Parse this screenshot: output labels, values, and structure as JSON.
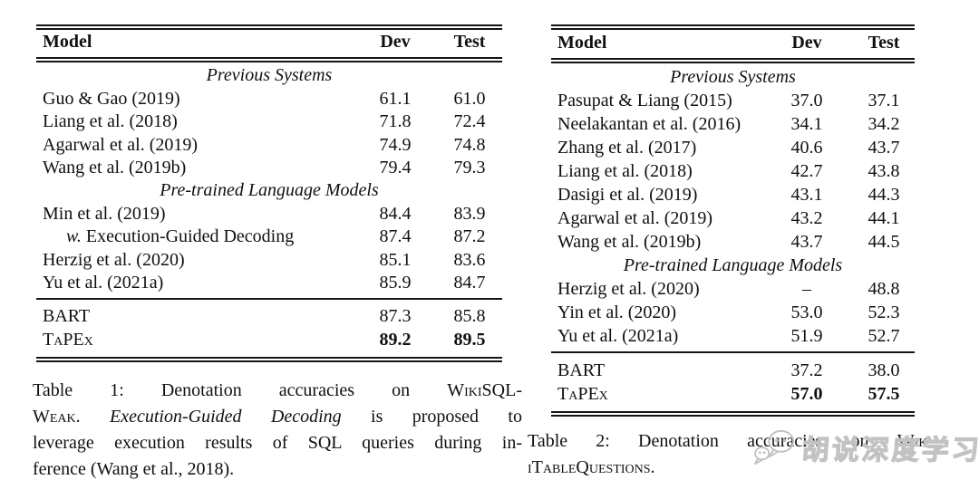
{
  "colors": {
    "background": "#ffffff",
    "text": "#101010",
    "rule": "#141414",
    "watermark_gray": "#c2c2c2"
  },
  "tables": [
    {
      "name": "wikisql-weak-results",
      "header": {
        "model": "Model",
        "dev": "Dev",
        "test": "Test"
      },
      "rows": [
        {
          "type": "section",
          "label": "Previous Systems"
        },
        {
          "type": "data",
          "model": [
            {
              "t": "Guo & Gao (2019)"
            }
          ],
          "dev": "61.1",
          "test": "61.0"
        },
        {
          "type": "data",
          "model": [
            {
              "t": "Liang et al. (2018)"
            }
          ],
          "dev": "71.8",
          "test": "72.4"
        },
        {
          "type": "data",
          "model": [
            {
              "t": "Agarwal et al. (2019)"
            }
          ],
          "dev": "74.9",
          "test": "74.8"
        },
        {
          "type": "data",
          "model": [
            {
              "t": "Wang et al. (2019b)"
            }
          ],
          "dev": "79.4",
          "test": "79.3"
        },
        {
          "type": "section",
          "label": "Pre-trained Language Models"
        },
        {
          "type": "data",
          "model": [
            {
              "t": "Min et al. (2019)"
            }
          ],
          "dev": "84.4",
          "test": "83.9"
        },
        {
          "type": "data",
          "indent": true,
          "model": [
            {
              "t": "w.",
              "i": true
            },
            {
              "t": " Execution-Guided Decoding"
            }
          ],
          "dev": "87.4",
          "test": "87.2"
        },
        {
          "type": "data",
          "model": [
            {
              "t": "Herzig et al. (2020)"
            }
          ],
          "dev": "85.1",
          "test": "83.6"
        },
        {
          "type": "data",
          "model": [
            {
              "t": "Yu et al. (2021a)"
            }
          ],
          "dev": "85.9",
          "test": "84.7"
        },
        {
          "type": "rule"
        },
        {
          "type": "data",
          "model": [
            {
              "t": "BART"
            }
          ],
          "dev": "87.3",
          "test": "85.8"
        },
        {
          "type": "data",
          "bold": true,
          "model": [
            {
              "t": "TaPEx",
              "sc": true
            }
          ],
          "dev": "89.2",
          "test": "89.5"
        }
      ],
      "caption": [
        [
          {
            "t": "Table 1: Denotation accuracies on "
          },
          {
            "t": "WikiSQL-",
            "sc": true
          }
        ],
        [
          {
            "t": "Weak.",
            "sc": true
          },
          {
            "t": " "
          },
          {
            "t": "Execution-Guided Decoding",
            "i": true
          },
          {
            "t": " is proposed to"
          }
        ],
        [
          {
            "t": "leverage execution results of SQL queries during in-"
          }
        ],
        [
          {
            "t": "ference (Wang et al., 2018)."
          }
        ]
      ]
    },
    {
      "name": "wikitablequestions-results",
      "header": {
        "model": "Model",
        "dev": "Dev",
        "test": "Test"
      },
      "rows": [
        {
          "type": "section",
          "label": "Previous Systems"
        },
        {
          "type": "data",
          "model": [
            {
              "t": "Pasupat & Liang (2015)"
            }
          ],
          "dev": "37.0",
          "test": "37.1"
        },
        {
          "type": "data",
          "model": [
            {
              "t": "Neelakantan et al. (2016)"
            }
          ],
          "dev": "34.1",
          "test": "34.2"
        },
        {
          "type": "data",
          "model": [
            {
              "t": "Zhang et al. (2017)"
            }
          ],
          "dev": "40.6",
          "test": "43.7"
        },
        {
          "type": "data",
          "model": [
            {
              "t": "Liang et al. (2018)"
            }
          ],
          "dev": "42.7",
          "test": "43.8"
        },
        {
          "type": "data",
          "model": [
            {
              "t": "Dasigi et al. (2019)"
            }
          ],
          "dev": "43.1",
          "test": "44.3"
        },
        {
          "type": "data",
          "model": [
            {
              "t": "Agarwal et al. (2019)"
            }
          ],
          "dev": "43.2",
          "test": "44.1"
        },
        {
          "type": "data",
          "model": [
            {
              "t": "Wang et al. (2019b)"
            }
          ],
          "dev": "43.7",
          "test": "44.5"
        },
        {
          "type": "section",
          "label": "Pre-trained Language Models"
        },
        {
          "type": "data",
          "model": [
            {
              "t": "Herzig et al. (2020)"
            }
          ],
          "dev": "–",
          "test": "48.8"
        },
        {
          "type": "data",
          "model": [
            {
              "t": "Yin et al. (2020)"
            }
          ],
          "dev": "53.0",
          "test": "52.3"
        },
        {
          "type": "data",
          "model": [
            {
              "t": "Yu et al. (2021a)"
            }
          ],
          "dev": "51.9",
          "test": "52.7"
        },
        {
          "type": "rule"
        },
        {
          "type": "data",
          "model": [
            {
              "t": "BART"
            }
          ],
          "dev": "37.2",
          "test": "38.0"
        },
        {
          "type": "data",
          "bold": true,
          "model": [
            {
              "t": "TaPEx",
              "sc": true
            }
          ],
          "dev": "57.0",
          "test": "57.5"
        }
      ],
      "caption": [
        [
          {
            "t": "Table 2: Denotation accuracies on "
          },
          {
            "t": "Wik-",
            "sc": true
          }
        ],
        [
          {
            "t": "iTableQuestions.",
            "sc": true
          }
        ]
      ]
    }
  ],
  "watermark": {
    "icon": "wechat-logo",
    "text": "胡说深度学习"
  }
}
